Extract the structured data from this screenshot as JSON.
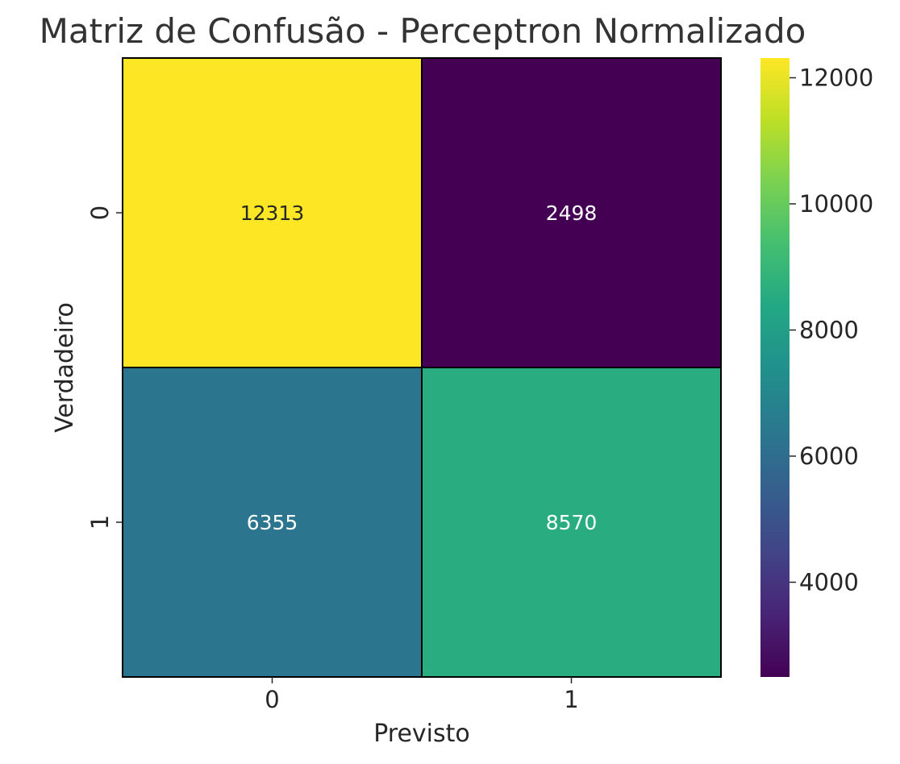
{
  "chart_data": {
    "type": "heatmap",
    "title": "Matriz de Confusão - Perceptron Normalizado",
    "xlabel": "Previsto",
    "ylabel": "Verdadeiro",
    "x_categories": [
      "0",
      "1"
    ],
    "y_categories": [
      "0",
      "1"
    ],
    "values": [
      [
        12313,
        2498
      ],
      [
        6355,
        8570
      ]
    ],
    "colormap": "viridis",
    "colorbar": {
      "range": [
        2498,
        12313
      ],
      "ticks": [
        4000,
        6000,
        8000,
        10000,
        12000
      ]
    },
    "grid": false
  }
}
